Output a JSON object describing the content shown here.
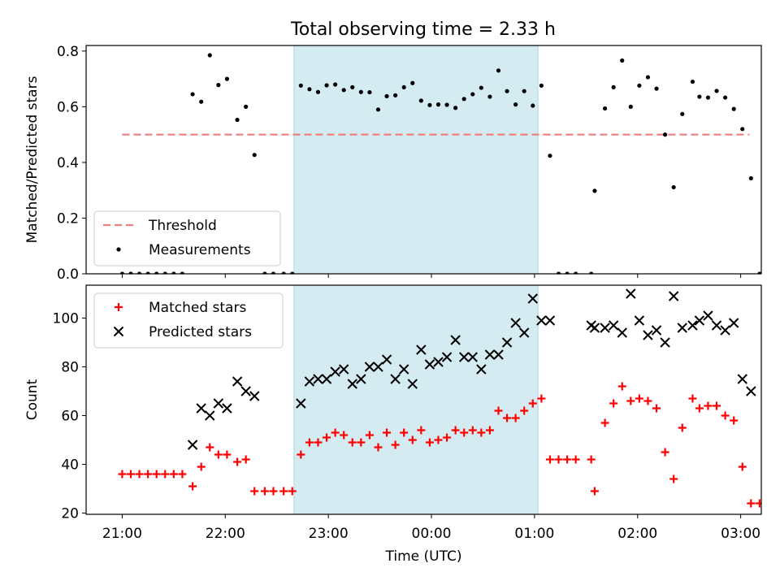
{
  "title": "Total observing time = 2.33 h",
  "chart_data": [
    {
      "type": "scatter",
      "ylabel": "Matched/Predicted stars",
      "xlim_hours": [
        20.65,
        27.2
      ],
      "ylim": [
        0,
        0.82
      ],
      "yticks": [
        0.0,
        0.2,
        0.4,
        0.6,
        0.8
      ],
      "ytick_labels": [
        "0.0",
        "0.2",
        "0.4",
        "0.6",
        "0.8"
      ],
      "shaded_interval": {
        "start": "22:40",
        "end": "01:02",
        "color": "#d4ebf1"
      },
      "legend_position": "lower-left",
      "legend": [
        "Threshold",
        "Measurements"
      ],
      "threshold": {
        "name": "Threshold",
        "value": 0.5,
        "from": "21:00",
        "to": "03:05",
        "color": "#f08080",
        "style": "dashed"
      },
      "series": [
        {
          "name": "Measurements",
          "marker": "dot",
          "color": "#000000",
          "points": [
            [
              "21:00",
              0
            ],
            [
              "21:05",
              0
            ],
            [
              "21:10",
              0
            ],
            [
              "21:15",
              0
            ],
            [
              "21:20",
              0
            ],
            [
              "21:25",
              0
            ],
            [
              "21:30",
              0
            ],
            [
              "21:35",
              0
            ],
            [
              "21:41",
              0.645
            ],
            [
              "21:46",
              0.618
            ],
            [
              "21:51",
              0.785
            ],
            [
              "21:56",
              0.678
            ],
            [
              "22:01",
              0.7
            ],
            [
              "22:07",
              0.553
            ],
            [
              "22:12",
              0.6
            ],
            [
              "22:17",
              0.427
            ],
            [
              "22:23",
              0
            ],
            [
              "22:28",
              0
            ],
            [
              "22:34",
              0
            ],
            [
              "22:39",
              0
            ],
            [
              "22:44",
              0.676
            ],
            [
              "22:49",
              0.663
            ],
            [
              "22:54",
              0.653
            ],
            [
              "22:59",
              0.677
            ],
            [
              "23:04",
              0.68
            ],
            [
              "23:09",
              0.66
            ],
            [
              "23:14",
              0.67
            ],
            [
              "23:19",
              0.653
            ],
            [
              "23:24",
              0.652
            ],
            [
              "23:29",
              0.59
            ],
            [
              "23:34",
              0.638
            ],
            [
              "23:39",
              0.641
            ],
            [
              "23:44",
              0.67
            ],
            [
              "23:49",
              0.685
            ],
            [
              "23:54",
              0.622
            ],
            [
              "23:59",
              0.606
            ],
            [
              "00:04",
              0.608
            ],
            [
              "00:09",
              0.607
            ],
            [
              "00:14",
              0.596
            ],
            [
              "00:19",
              0.628
            ],
            [
              "00:24",
              0.645
            ],
            [
              "00:29",
              0.668
            ],
            [
              "00:34",
              0.636
            ],
            [
              "00:39",
              0.73
            ],
            [
              "00:44",
              0.656
            ],
            [
              "00:49",
              0.608
            ],
            [
              "00:54",
              0.656
            ],
            [
              "00:59",
              0.604
            ],
            [
              "01:04",
              0.676
            ],
            [
              "01:09",
              0.424
            ],
            [
              "01:14",
              0
            ],
            [
              "01:19",
              0
            ],
            [
              "01:24",
              0
            ],
            [
              "01:33",
              0
            ],
            [
              "01:35",
              0.298
            ],
            [
              "01:41",
              0.594
            ],
            [
              "01:46",
              0.67
            ],
            [
              "01:51",
              0.766
            ],
            [
              "01:56",
              0.6
            ],
            [
              "02:01",
              0.676
            ],
            [
              "02:06",
              0.706
            ],
            [
              "02:11",
              0.665
            ],
            [
              "02:16",
              0.5
            ],
            [
              "02:21",
              0.311
            ],
            [
              "02:26",
              0.574
            ],
            [
              "02:32",
              0.69
            ],
            [
              "02:36",
              0.636
            ],
            [
              "02:41",
              0.633
            ],
            [
              "02:46",
              0.657
            ],
            [
              "02:51",
              0.633
            ],
            [
              "02:56",
              0.592
            ],
            [
              "03:01",
              0.52
            ],
            [
              "03:06",
              0.343
            ],
            [
              "03:11",
              0
            ]
          ]
        }
      ]
    },
    {
      "type": "scatter",
      "xlabel": "Time (UTC)",
      "ylabel": "Count",
      "xlim_hours": [
        20.65,
        27.2
      ],
      "ylim": [
        19.5,
        113.5
      ],
      "yticks": [
        20,
        40,
        60,
        80,
        100
      ],
      "ytick_labels": [
        "20",
        "40",
        "60",
        "80",
        "100"
      ],
      "xtick_labels": [
        "21:00",
        "22:00",
        "23:00",
        "00:00",
        "01:00",
        "02:00",
        "03:00"
      ],
      "shaded_interval": {
        "start": "22:40",
        "end": "01:02",
        "color": "#d4ebf1"
      },
      "legend_position": "upper-left",
      "legend": [
        "Matched stars",
        "Predicted stars"
      ],
      "series": [
        {
          "name": "Matched stars",
          "marker": "plus",
          "color": "#ff0000",
          "points": [
            [
              "21:00",
              36
            ],
            [
              "21:05",
              36
            ],
            [
              "21:10",
              36
            ],
            [
              "21:15",
              36
            ],
            [
              "21:20",
              36
            ],
            [
              "21:25",
              36
            ],
            [
              "21:30",
              36
            ],
            [
              "21:35",
              36
            ],
            [
              "21:41",
              31
            ],
            [
              "21:46",
              39
            ],
            [
              "21:51",
              47
            ],
            [
              "21:56",
              44
            ],
            [
              "22:01",
              44
            ],
            [
              "22:07",
              41
            ],
            [
              "22:12",
              42
            ],
            [
              "22:17",
              29
            ],
            [
              "22:23",
              29
            ],
            [
              "22:28",
              29
            ],
            [
              "22:34",
              29
            ],
            [
              "22:39",
              29
            ],
            [
              "22:44",
              44
            ],
            [
              "22:49",
              49
            ],
            [
              "22:54",
              49
            ],
            [
              "22:59",
              51
            ],
            [
              "23:04",
              53
            ],
            [
              "23:09",
              52
            ],
            [
              "23:14",
              49
            ],
            [
              "23:19",
              49
            ],
            [
              "23:24",
              52
            ],
            [
              "23:29",
              47
            ],
            [
              "23:34",
              53
            ],
            [
              "23:39",
              48
            ],
            [
              "23:44",
              53
            ],
            [
              "23:49",
              50
            ],
            [
              "23:54",
              54
            ],
            [
              "23:59",
              49
            ],
            [
              "00:04",
              50
            ],
            [
              "00:09",
              51
            ],
            [
              "00:14",
              54
            ],
            [
              "00:19",
              53
            ],
            [
              "00:24",
              54
            ],
            [
              "00:29",
              53
            ],
            [
              "00:34",
              54
            ],
            [
              "00:39",
              62
            ],
            [
              "00:44",
              59
            ],
            [
              "00:49",
              59
            ],
            [
              "00:54",
              62
            ],
            [
              "00:59",
              65
            ],
            [
              "01:04",
              67
            ],
            [
              "01:09",
              42
            ],
            [
              "01:14",
              42
            ],
            [
              "01:19",
              42
            ],
            [
              "01:24",
              42
            ],
            [
              "01:33",
              42
            ],
            [
              "01:35",
              29
            ],
            [
              "01:41",
              57
            ],
            [
              "01:46",
              65
            ],
            [
              "01:51",
              72
            ],
            [
              "01:56",
              66
            ],
            [
              "02:01",
              67
            ],
            [
              "02:06",
              66
            ],
            [
              "02:11",
              63
            ],
            [
              "02:16",
              45
            ],
            [
              "02:21",
              34
            ],
            [
              "02:26",
              55
            ],
            [
              "02:32",
              67
            ],
            [
              "02:36",
              63
            ],
            [
              "02:41",
              64
            ],
            [
              "02:46",
              64
            ],
            [
              "02:51",
              60
            ],
            [
              "02:56",
              58
            ],
            [
              "03:01",
              39
            ],
            [
              "03:06",
              24
            ],
            [
              "03:11",
              24
            ]
          ]
        },
        {
          "name": "Predicted stars",
          "marker": "x",
          "color": "#000000",
          "points": [
            [
              "21:41",
              48
            ],
            [
              "21:46",
              63
            ],
            [
              "21:51",
              60
            ],
            [
              "21:56",
              65
            ],
            [
              "22:01",
              63
            ],
            [
              "22:07",
              74
            ],
            [
              "22:12",
              70
            ],
            [
              "22:17",
              68
            ],
            [
              "22:44",
              65
            ],
            [
              "22:49",
              74
            ],
            [
              "22:54",
              75
            ],
            [
              "22:59",
              75
            ],
            [
              "23:04",
              78
            ],
            [
              "23:09",
              79
            ],
            [
              "23:14",
              73
            ],
            [
              "23:19",
              75
            ],
            [
              "23:24",
              80
            ],
            [
              "23:29",
              80
            ],
            [
              "23:34",
              83
            ],
            [
              "23:39",
              75
            ],
            [
              "23:44",
              79
            ],
            [
              "23:49",
              73
            ],
            [
              "23:54",
              87
            ],
            [
              "23:59",
              81
            ],
            [
              "00:04",
              82
            ],
            [
              "00:09",
              84
            ],
            [
              "00:14",
              91
            ],
            [
              "00:19",
              84
            ],
            [
              "00:24",
              84
            ],
            [
              "00:29",
              79
            ],
            [
              "00:34",
              85
            ],
            [
              "00:39",
              85
            ],
            [
              "00:44",
              90
            ],
            [
              "00:49",
              98
            ],
            [
              "00:54",
              94
            ],
            [
              "00:59",
              108
            ],
            [
              "01:04",
              99
            ],
            [
              "01:09",
              99
            ],
            [
              "01:33",
              97
            ],
            [
              "01:35",
              96
            ],
            [
              "01:41",
              96
            ],
            [
              "01:46",
              97
            ],
            [
              "01:51",
              94
            ],
            [
              "01:56",
              110
            ],
            [
              "02:01",
              99
            ],
            [
              "02:06",
              93
            ],
            [
              "02:11",
              95
            ],
            [
              "02:16",
              90
            ],
            [
              "02:21",
              109
            ],
            [
              "02:26",
              96
            ],
            [
              "02:32",
              97
            ],
            [
              "02:36",
              99
            ],
            [
              "02:41",
              101
            ],
            [
              "02:46",
              97
            ],
            [
              "02:51",
              95
            ],
            [
              "02:56",
              98
            ],
            [
              "03:01",
              75
            ],
            [
              "03:06",
              70
            ]
          ]
        }
      ]
    }
  ]
}
